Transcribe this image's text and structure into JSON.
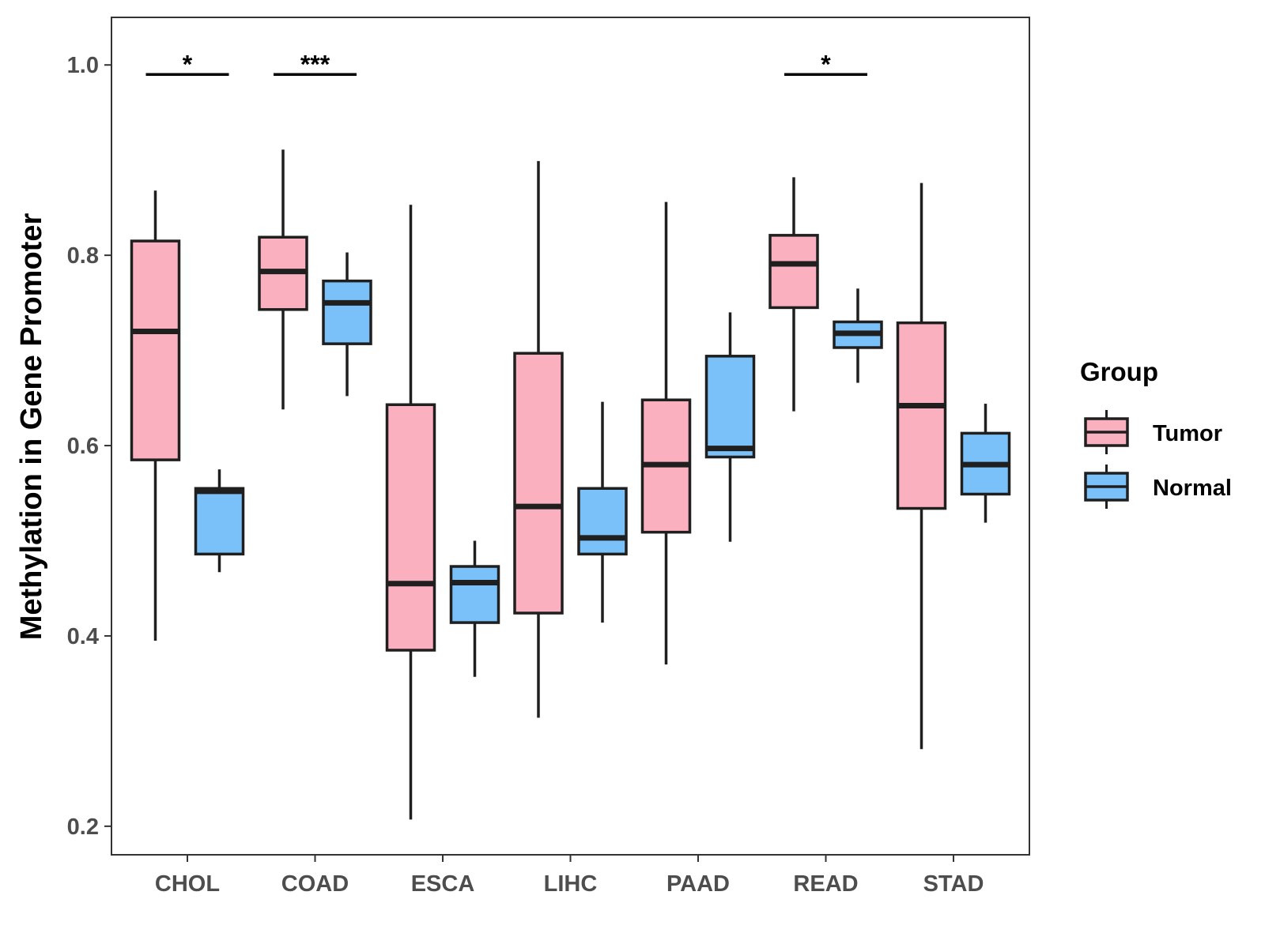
{
  "chart_data": {
    "type": "boxplot",
    "title": "",
    "xlabel": "",
    "ylabel": "Methylation in Gene Promoter",
    "ylim": [
      0.17,
      1.05
    ],
    "yticks": [
      0.2,
      0.4,
      0.6,
      0.8,
      1.0
    ],
    "ytick_labels": [
      "0.2",
      "0.4",
      "0.6",
      "0.8",
      "1.0"
    ],
    "categories": [
      "CHOL",
      "COAD",
      "ESCA",
      "LIHC",
      "PAAD",
      "READ",
      "STAD"
    ],
    "grid": false,
    "legend": {
      "title": "Group",
      "position": "right",
      "entries": [
        {
          "name": "Tumor",
          "color": "#FBB0C0"
        },
        {
          "name": "Normal",
          "color": "#79C1F8"
        }
      ]
    },
    "series": [
      {
        "name": "Tumor",
        "color": "#FBB0C0",
        "boxes": [
          {
            "category": "CHOL",
            "whisker_low": 0.395,
            "q1": 0.585,
            "median": 0.72,
            "q3": 0.815,
            "whisker_high": 0.868
          },
          {
            "category": "COAD",
            "whisker_low": 0.638,
            "q1": 0.743,
            "median": 0.783,
            "q3": 0.819,
            "whisker_high": 0.911
          },
          {
            "category": "ESCA",
            "whisker_low": 0.207,
            "q1": 0.385,
            "median": 0.455,
            "q3": 0.643,
            "whisker_high": 0.853
          },
          {
            "category": "LIHC",
            "whisker_low": 0.314,
            "q1": 0.424,
            "median": 0.536,
            "q3": 0.697,
            "whisker_high": 0.899
          },
          {
            "category": "PAAD",
            "whisker_low": 0.37,
            "q1": 0.509,
            "median": 0.58,
            "q3": 0.648,
            "whisker_high": 0.856
          },
          {
            "category": "READ",
            "whisker_low": 0.636,
            "q1": 0.745,
            "median": 0.791,
            "q3": 0.821,
            "whisker_high": 0.882
          },
          {
            "category": "STAD",
            "whisker_low": 0.281,
            "q1": 0.534,
            "median": 0.642,
            "q3": 0.729,
            "whisker_high": 0.876
          }
        ]
      },
      {
        "name": "Normal",
        "color": "#79C1F8",
        "boxes": [
          {
            "category": "CHOL",
            "whisker_low": 0.467,
            "q1": 0.486,
            "median": 0.552,
            "q3": 0.555,
            "whisker_high": 0.575
          },
          {
            "category": "COAD",
            "whisker_low": 0.652,
            "q1": 0.707,
            "median": 0.75,
            "q3": 0.773,
            "whisker_high": 0.803
          },
          {
            "category": "ESCA",
            "whisker_low": 0.357,
            "q1": 0.414,
            "median": 0.456,
            "q3": 0.473,
            "whisker_high": 0.5
          },
          {
            "category": "LIHC",
            "whisker_low": 0.414,
            "q1": 0.486,
            "median": 0.503,
            "q3": 0.555,
            "whisker_high": 0.646
          },
          {
            "category": "PAAD",
            "whisker_low": 0.499,
            "q1": 0.588,
            "median": 0.597,
            "q3": 0.694,
            "whisker_high": 0.74
          },
          {
            "category": "READ",
            "whisker_low": 0.666,
            "q1": 0.703,
            "median": 0.718,
            "q3": 0.73,
            "whisker_high": 0.765
          },
          {
            "category": "STAD",
            "whisker_low": 0.519,
            "q1": 0.549,
            "median": 0.58,
            "q3": 0.613,
            "whisker_high": 0.644
          }
        ]
      }
    ],
    "annotations": [
      {
        "category": "CHOL",
        "label": "*",
        "y": 0.99
      },
      {
        "category": "COAD",
        "label": "***",
        "y": 0.99
      },
      {
        "category": "READ",
        "label": "*",
        "y": 0.99
      }
    ]
  }
}
